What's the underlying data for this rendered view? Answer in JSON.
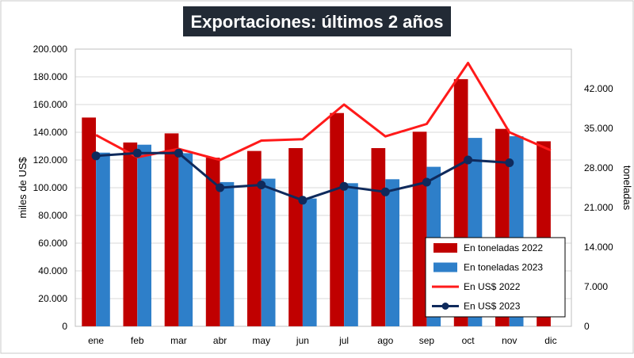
{
  "chart_data": {
    "type": "bar",
    "title": "Exportaciones: últimos 2 años",
    "categories": [
      "ene",
      "feb",
      "mar",
      "abr",
      "may",
      "jun",
      "jul",
      "ago",
      "sep",
      "oct",
      "nov",
      "dic"
    ],
    "ylabel": "miles de US$",
    "y2label": "toneladas",
    "ylim": [
      0,
      200000
    ],
    "y2lim": [
      0,
      49000
    ],
    "yticks": [
      "0",
      "20.000",
      "40.000",
      "60.000",
      "80.000",
      "100.000",
      "120.000",
      "140.000",
      "160.000",
      "180.000",
      "200.000"
    ],
    "y2ticks": [
      "0",
      "7.000",
      "14.000",
      "21.000",
      "28.000",
      "35.000",
      "42.000"
    ],
    "grid": true,
    "legend_position": "bottom-right",
    "series": [
      {
        "name": "En toneladas 2022",
        "kind": "bar",
        "axis": "right",
        "color": "#c00000",
        "values": [
          36900,
          32500,
          34100,
          29800,
          31000,
          31500,
          37700,
          31500,
          34400,
          43700,
          34900,
          32700
        ]
      },
      {
        "name": "En toneladas 2023",
        "kind": "bar",
        "axis": "right",
        "color": "#2e7fc9",
        "values": [
          30700,
          32100,
          30600,
          25500,
          26100,
          22600,
          25300,
          26000,
          28200,
          33300,
          33600,
          null
        ]
      },
      {
        "name": "En US$ 2022",
        "kind": "line",
        "axis": "left",
        "color": "#ff1a1a",
        "values": [
          138000,
          122000,
          128000,
          120000,
          134000,
          135000,
          160000,
          137000,
          146000,
          190000,
          140000,
          127000
        ]
      },
      {
        "name": "En US$ 2023",
        "kind": "line",
        "axis": "left",
        "color": "#0f2a5c",
        "marker": "circle",
        "values": [
          123000,
          125000,
          125000,
          100000,
          102000,
          91000,
          101000,
          97000,
          104000,
          120000,
          118000,
          null
        ]
      }
    ]
  }
}
